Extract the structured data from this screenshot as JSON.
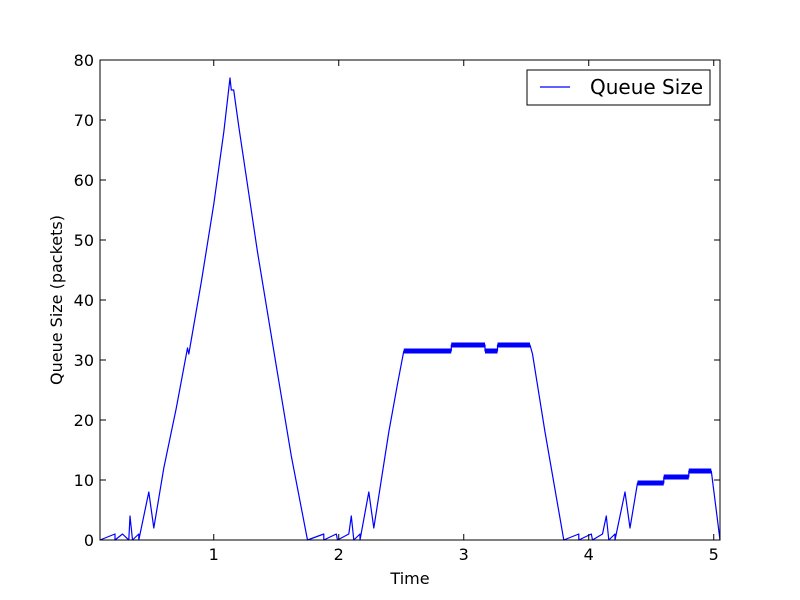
{
  "chart_data": {
    "type": "line",
    "title": "",
    "xlabel": "Time",
    "ylabel": "Queue Size (packets)",
    "xlim": [
      0.09,
      5.05
    ],
    "ylim": [
      0,
      80
    ],
    "xticks": [
      1,
      2,
      3,
      4,
      5
    ],
    "yticks": [
      0,
      10,
      20,
      30,
      40,
      50,
      60,
      70,
      80
    ],
    "legend_position": "top-right",
    "grid": false,
    "series": [
      {
        "name": "Queue Size",
        "color": "#0000ff",
        "points": [
          [
            0.09,
            0
          ],
          [
            0.21,
            1
          ],
          [
            0.21,
            0
          ],
          [
            0.27,
            1
          ],
          [
            0.32,
            0
          ],
          [
            0.33,
            4
          ],
          [
            0.35,
            0
          ],
          [
            0.4,
            1
          ],
          [
            0.4,
            0
          ],
          [
            0.48,
            8
          ],
          [
            0.52,
            2
          ],
          [
            0.6,
            12
          ],
          [
            0.7,
            22
          ],
          [
            0.79,
            32
          ],
          [
            0.8,
            31
          ],
          [
            0.9,
            43
          ],
          [
            1.0,
            56
          ],
          [
            1.08,
            68
          ],
          [
            1.13,
            77
          ],
          [
            1.14,
            75
          ],
          [
            1.16,
            75
          ],
          [
            1.2,
            69
          ],
          [
            1.35,
            48
          ],
          [
            1.5,
            29
          ],
          [
            1.62,
            14
          ],
          [
            1.75,
            0
          ],
          [
            1.88,
            1
          ],
          [
            1.88,
            0
          ],
          [
            1.98,
            1
          ],
          [
            1.99,
            0
          ],
          [
            2.08,
            1
          ],
          [
            2.1,
            4
          ],
          [
            2.12,
            0
          ],
          [
            2.17,
            1
          ],
          [
            2.17,
            0
          ],
          [
            2.24,
            8
          ],
          [
            2.28,
            2
          ],
          [
            2.4,
            18
          ],
          [
            2.47,
            26
          ],
          [
            2.52,
            31.5
          ],
          [
            2.9,
            31.5
          ],
          [
            2.9,
            32.5
          ],
          [
            3.17,
            32.5
          ],
          [
            3.17,
            31.5
          ],
          [
            3.27,
            31.5
          ],
          [
            3.27,
            32.5
          ],
          [
            3.53,
            32.5
          ],
          [
            3.55,
            31
          ],
          [
            3.65,
            18
          ],
          [
            3.8,
            0
          ],
          [
            3.92,
            1
          ],
          [
            3.92,
            0
          ],
          [
            4.02,
            1
          ],
          [
            4.03,
            0
          ],
          [
            4.11,
            1
          ],
          [
            4.14,
            4
          ],
          [
            4.16,
            0
          ],
          [
            4.21,
            1
          ],
          [
            4.21,
            0
          ],
          [
            4.29,
            8
          ],
          [
            4.33,
            2
          ],
          [
            4.39,
            9.5
          ],
          [
            4.6,
            9.5
          ],
          [
            4.6,
            10.5
          ],
          [
            4.8,
            10.5
          ],
          [
            4.8,
            11.5
          ],
          [
            4.98,
            11.5
          ],
          [
            5.05,
            0
          ]
        ]
      }
    ]
  }
}
